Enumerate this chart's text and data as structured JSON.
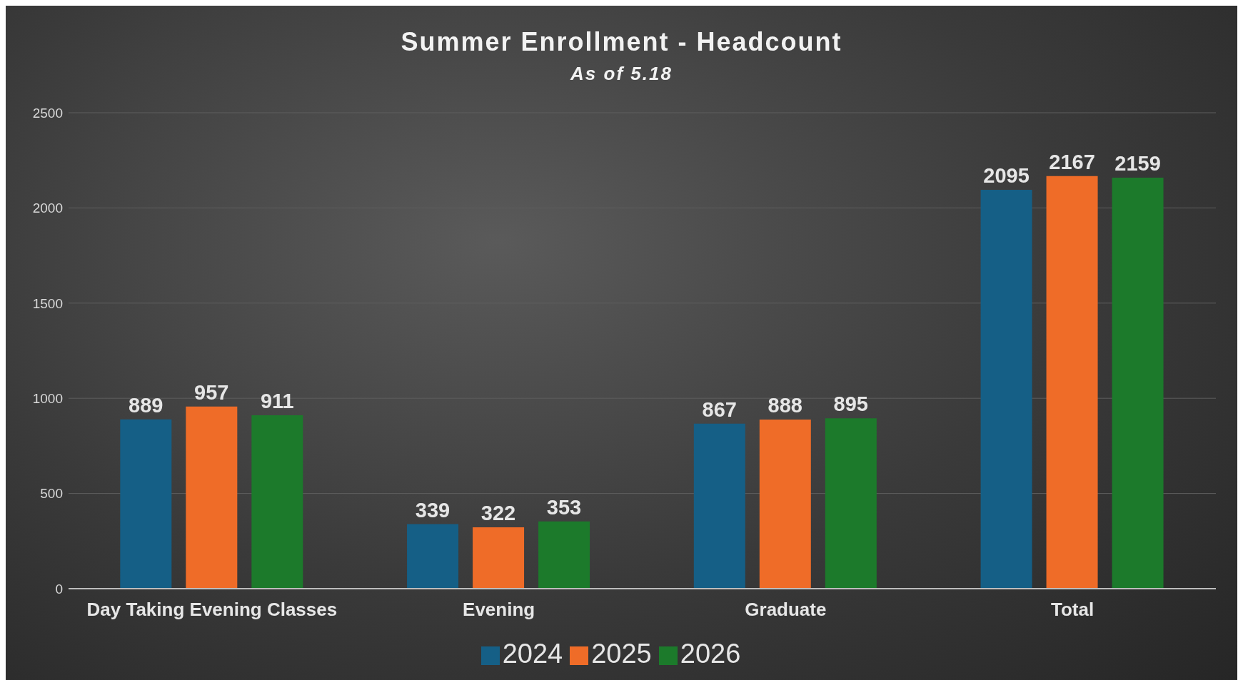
{
  "chart_data": {
    "type": "bar",
    "title": "Summer Enrollment - Headcount",
    "subtitle": "As of 5.18",
    "categories": [
      "Day Taking Evening Classes",
      "Evening",
      "Graduate",
      "Total"
    ],
    "series": [
      {
        "name": "2024",
        "color": "#155f86",
        "values": [
          889,
          339,
          867,
          2095
        ]
      },
      {
        "name": "2025",
        "color": "#ef6c28",
        "values": [
          957,
          322,
          888,
          2167
        ]
      },
      {
        "name": "2026",
        "color": "#1c7a2b",
        "values": [
          911,
          353,
          895,
          2159
        ]
      }
    ],
    "ylim": [
      0,
      2500
    ],
    "yticks": [
      0,
      500,
      1000,
      1500,
      2000,
      2500
    ],
    "grid": "y",
    "legend": "bottom",
    "data_labels": true
  }
}
